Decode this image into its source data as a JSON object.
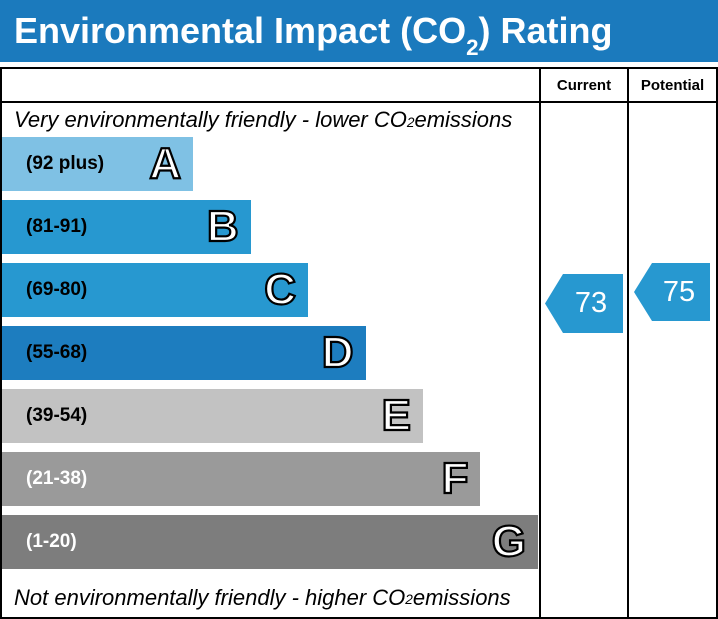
{
  "title": {
    "prefix": "Environmental Impact (CO",
    "sub": "2",
    "suffix": ") Rating"
  },
  "header": {
    "current_label": "Current",
    "potential_label": "Potential"
  },
  "captions": {
    "top": {
      "prefix": "Very environmentally friendly - lower CO",
      "sub": "2",
      "suffix": " emissions"
    },
    "bottom": {
      "prefix": "Not environmentally friendly - higher CO",
      "sub": "2",
      "suffix": " emissions"
    }
  },
  "chart_data": {
    "type": "bar",
    "title": "Environmental Impact (CO2) Rating",
    "bands": [
      {
        "letter": "A",
        "label": "(92 plus)",
        "color": "#7fc1e4",
        "label_color": "#000000",
        "width_pct": 35.6
      },
      {
        "letter": "B",
        "label": "(81-91)",
        "color": "#2798d0",
        "label_color": "#000000",
        "width_pct": 46.3
      },
      {
        "letter": "C",
        "label": "(69-80)",
        "color": "#2798d0",
        "label_color": "#000000",
        "width_pct": 57.0
      },
      {
        "letter": "D",
        "label": "(55-68)",
        "color": "#1d7dbf",
        "label_color": "#000000",
        "width_pct": 67.7
      },
      {
        "letter": "E",
        "label": "(39-54)",
        "color": "#c2c2c2",
        "label_color": "#000000",
        "width_pct": 78.4
      },
      {
        "letter": "F",
        "label": "(21-38)",
        "color": "#9a9a9a",
        "label_color": "#ffffff",
        "width_pct": 89.1
      },
      {
        "letter": "G",
        "label": "(1-20)",
        "color": "#7d7d7d",
        "label_color": "#ffffff",
        "width_pct": 99.8
      }
    ],
    "current": {
      "value": 73,
      "band": "C",
      "arrow_color": "#2798d0"
    },
    "potential": {
      "value": 75,
      "band": "C",
      "arrow_color": "#2798d0"
    }
  },
  "colors": {
    "title_bar": "#1b7abd",
    "border": "#000000",
    "title_text": "#ffffff"
  }
}
